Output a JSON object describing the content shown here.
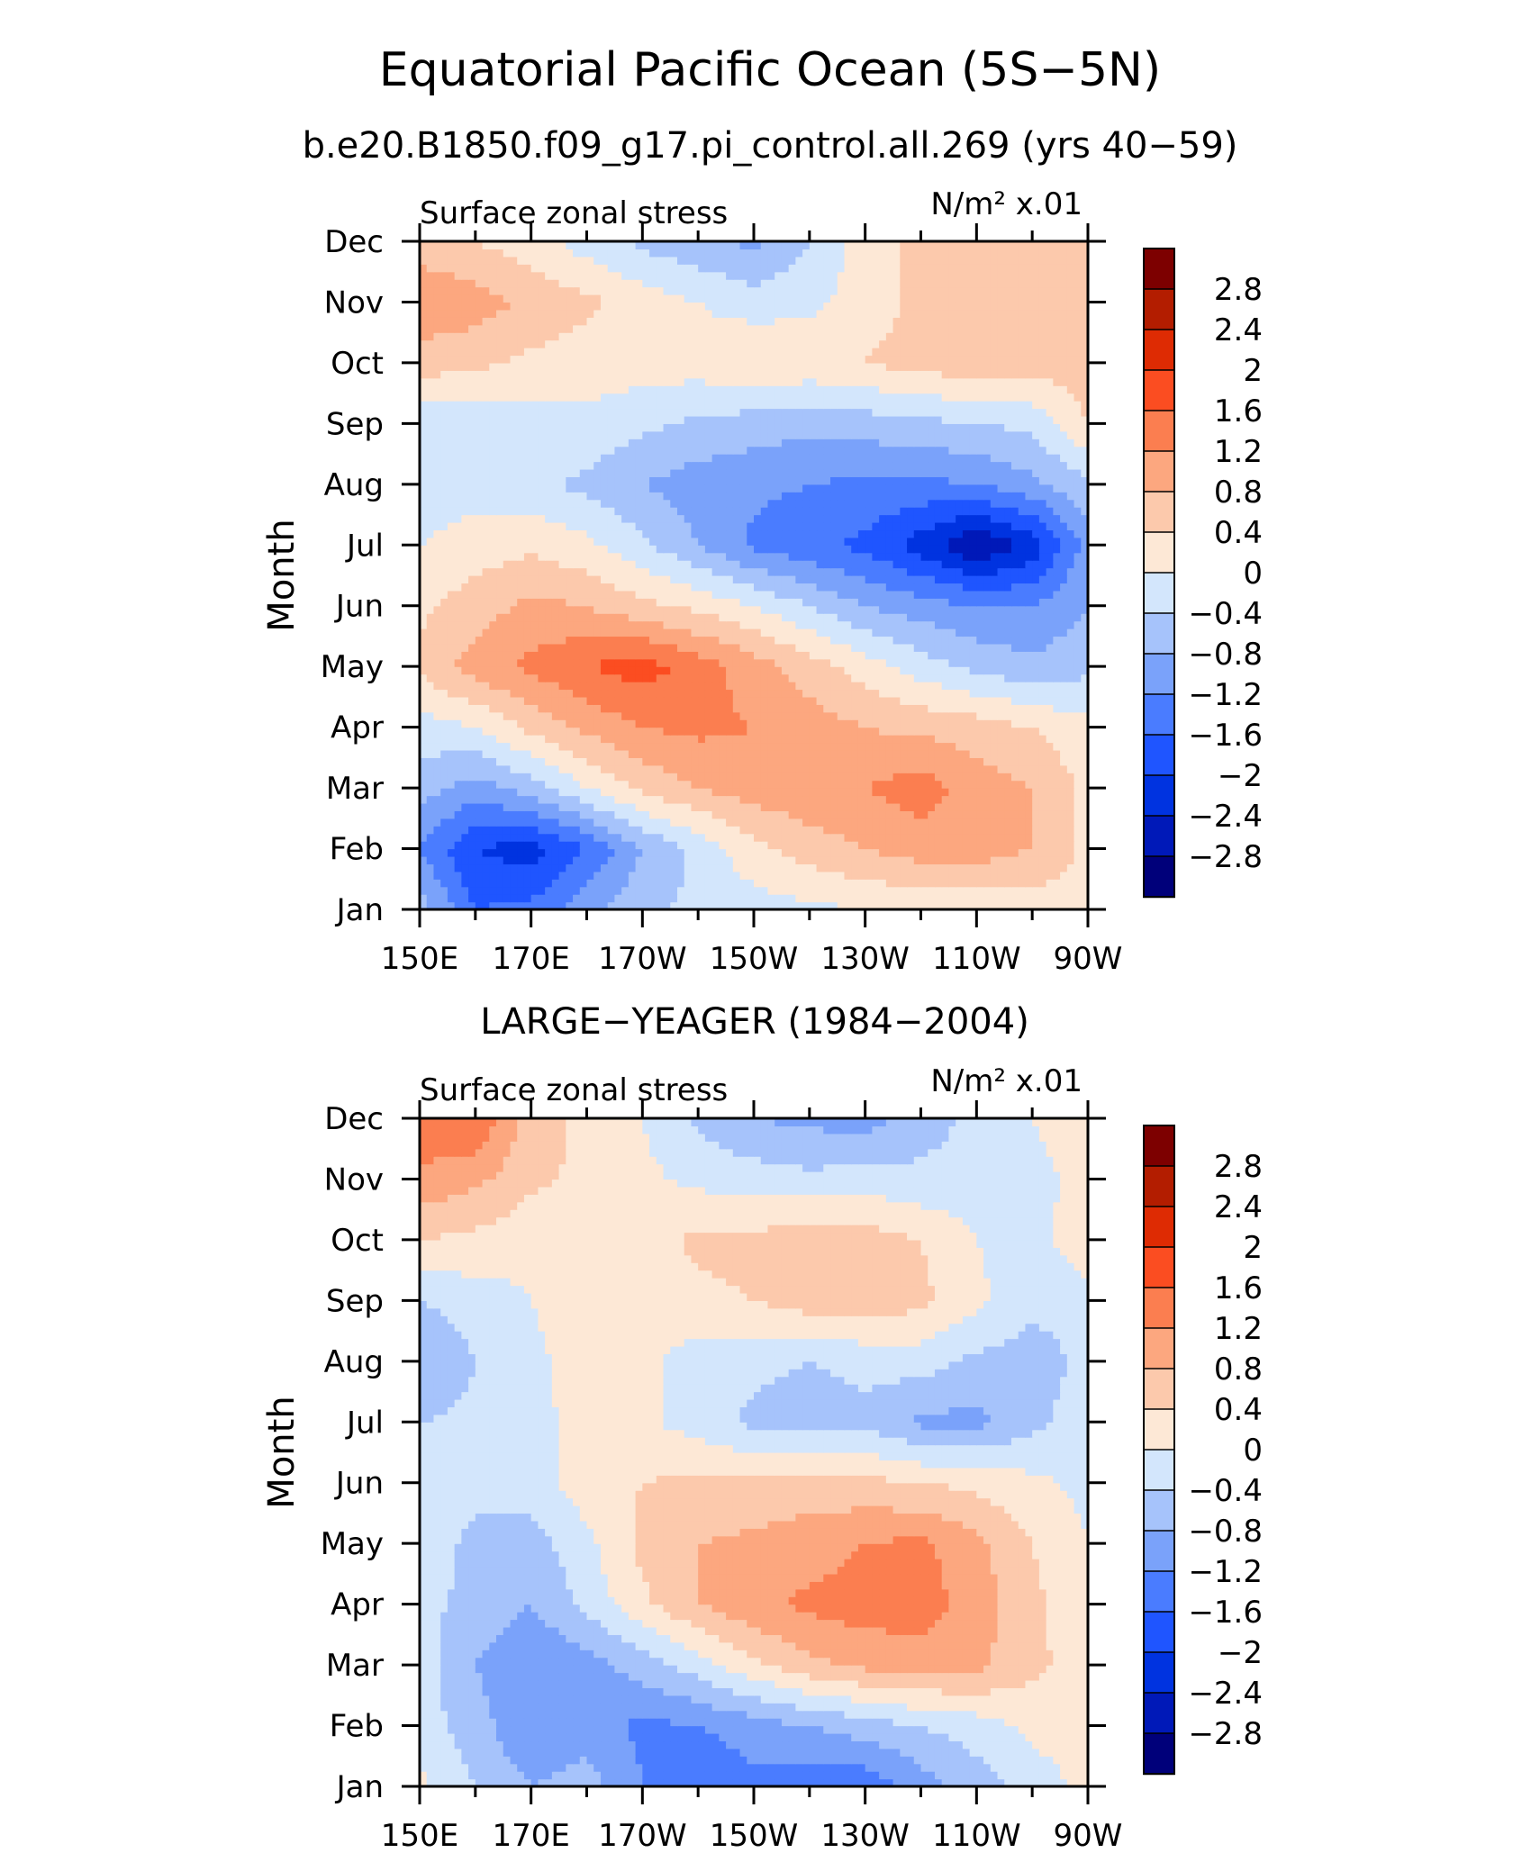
{
  "title": "Equatorial Pacific Ocean (5S−5N)",
  "subtitle": "b.e20.B1850.f09_g17.pi_control.all.269 (yrs 40−59)",
  "panel2_title": "LARGE−YEAGER (1984−2004)",
  "palette": [
    "#00007a",
    "#0019b8",
    "#0033e0",
    "#1f55ff",
    "#4a7cff",
    "#7aa2fa",
    "#a6c3fb",
    "#d3e6fc",
    "#fde8d6",
    "#fcc9ac",
    "#fca77f",
    "#fb7e50",
    "#fb4d21",
    "#de2b03",
    "#b31d00",
    "#7d0000"
  ],
  "chart_data": [
    {
      "type": "heatmap",
      "title": "",
      "left_label": "Surface zonal stress",
      "units_label": "N/m² x.01",
      "ylabel": "Month",
      "xlabel": "",
      "x_ticks": [
        "150E",
        "170E",
        "170W",
        "150W",
        "130W",
        "110W",
        "90W"
      ],
      "y_ticks": [
        "Jan",
        "Feb",
        "Mar",
        "Apr",
        "May",
        "Jun",
        "Jul",
        "Aug",
        "Sep",
        "Oct",
        "Nov",
        "Dec"
      ],
      "xlim_deg_east": [
        150,
        270
      ],
      "contour_levels": [
        -2.8,
        -2.4,
        -2,
        -1.6,
        -1.2,
        -0.8,
        -0.4,
        0,
        0.4,
        0.8,
        1.2,
        1.6,
        2,
        2.4,
        2.8
      ],
      "colorbar_labels": [
        "2.8",
        "2.4",
        "2",
        "1.6",
        "1.2",
        "0.8",
        "0.4",
        "0",
        "−0.4",
        "−0.8",
        "−1.2",
        "−1.6",
        "−2",
        "−2.4",
        "−2.8"
      ],
      "lon_grid": [
        150,
        160,
        170,
        180,
        190,
        200,
        210,
        220,
        230,
        240,
        250,
        260,
        270
      ],
      "values": [
        [
          -0.6,
          -1.6,
          -1.5,
          -0.9,
          -0.5,
          -0.3,
          -0.2,
          -0.1,
          0.0,
          0.1,
          0.1,
          0.2,
          0.2
        ],
        [
          -1.2,
          -2.0,
          -2.2,
          -1.6,
          -0.8,
          -0.3,
          0.3,
          0.6,
          0.8,
          1.0,
          1.0,
          0.8,
          0.3
        ],
        [
          -0.6,
          -1.0,
          -0.6,
          0.0,
          0.5,
          0.8,
          1.0,
          1.1,
          1.2,
          1.4,
          1.0,
          0.8,
          0.3
        ],
        [
          -0.2,
          0.0,
          0.5,
          0.9,
          1.2,
          1.3,
          1.2,
          1.0,
          0.8,
          0.7,
          0.6,
          0.4,
          0.1
        ],
        [
          0.5,
          1.0,
          1.3,
          1.6,
          1.8,
          1.4,
          1.0,
          0.6,
          0.2,
          -0.2,
          -0.5,
          -0.7,
          -0.5
        ],
        [
          0.3,
          0.6,
          0.9,
          0.8,
          0.5,
          0.3,
          0.0,
          -0.4,
          -0.8,
          -1.0,
          -1.2,
          -1.2,
          -0.8
        ],
        [
          0.0,
          0.2,
          0.3,
          0.1,
          -0.3,
          -0.8,
          -1.3,
          -1.5,
          -1.7,
          -2.2,
          -2.8,
          -2.3,
          -1.0
        ],
        [
          -0.2,
          -0.2,
          -0.3,
          -0.5,
          -0.8,
          -1.0,
          -1.1,
          -1.2,
          -1.3,
          -1.3,
          -1.2,
          -0.9,
          -0.5
        ],
        [
          -0.3,
          -0.3,
          -0.2,
          -0.1,
          -0.3,
          -0.5,
          -0.6,
          -0.7,
          -0.6,
          -0.5,
          -0.4,
          -0.3,
          0.4
        ],
        [
          0.6,
          0.5,
          0.3,
          0.2,
          0.2,
          0.2,
          0.4,
          0.3,
          0.4,
          0.6,
          0.6,
          0.6,
          0.6
        ],
        [
          1.1,
          1.0,
          0.7,
          0.5,
          0.2,
          0.0,
          -0.2,
          -0.1,
          0.2,
          0.5,
          0.6,
          0.6,
          0.6
        ],
        [
          0.6,
          0.4,
          0.2,
          -0.2,
          -0.5,
          -0.7,
          -0.9,
          -0.4,
          0.2,
          0.5,
          0.6,
          0.6,
          0.6
        ]
      ]
    },
    {
      "type": "heatmap",
      "title": "LARGE−YEAGER (1984−2004)",
      "left_label": "Surface zonal stress",
      "units_label": "N/m² x.01",
      "ylabel": "Month",
      "xlabel": "",
      "x_ticks": [
        "150E",
        "170E",
        "170W",
        "150W",
        "130W",
        "110W",
        "90W"
      ],
      "y_ticks": [
        "Jan",
        "Feb",
        "Mar",
        "Apr",
        "May",
        "Jun",
        "Jul",
        "Aug",
        "Sep",
        "Oct",
        "Nov",
        "Dec"
      ],
      "xlim_deg_east": [
        150,
        270
      ],
      "contour_levels": [
        -2.8,
        -2.4,
        -2,
        -1.6,
        -1.2,
        -0.8,
        -0.4,
        0,
        0.4,
        0.8,
        1.2,
        1.6,
        2,
        2.4,
        2.8
      ],
      "colorbar_labels": [
        "2.8",
        "2.4",
        "2",
        "1.6",
        "1.2",
        "0.8",
        "0.4",
        "0",
        "−0.4",
        "−0.8",
        "−1.2",
        "−1.6",
        "−2",
        "−2.4",
        "−2.8"
      ],
      "lon_grid": [
        150,
        160,
        170,
        180,
        190,
        200,
        210,
        220,
        230,
        240,
        250,
        260,
        270
      ],
      "values": [
        [
          0.1,
          -0.4,
          -0.8,
          -0.6,
          -1.2,
          -1.6,
          -1.3,
          -1.4,
          -1.5,
          -1.0,
          -0.6,
          -0.2,
          0.1
        ],
        [
          -0.2,
          -0.6,
          -1.2,
          -1.0,
          -1.3,
          -1.2,
          -1.0,
          -0.8,
          -0.6,
          -0.4,
          -0.2,
          0.1,
          0.2
        ],
        [
          -0.2,
          -0.8,
          -1.2,
          -1.0,
          -0.6,
          -0.2,
          0.3,
          0.7,
          0.9,
          1.0,
          0.9,
          0.5,
          0.2
        ],
        [
          -0.3,
          -0.5,
          -0.8,
          -0.3,
          0.3,
          0.8,
          1.1,
          1.3,
          1.4,
          1.4,
          1.0,
          0.5,
          0.1
        ],
        [
          -0.2,
          -0.5,
          -0.6,
          -0.1,
          0.5,
          0.8,
          0.9,
          1.0,
          1.2,
          1.3,
          0.9,
          0.4,
          0.0
        ],
        [
          -0.2,
          -0.3,
          -0.2,
          0.2,
          0.4,
          0.5,
          0.5,
          0.6,
          0.5,
          0.4,
          0.3,
          0.1,
          -0.1
        ],
        [
          -0.4,
          -0.3,
          -0.1,
          0.1,
          0.1,
          -0.2,
          -0.5,
          -0.6,
          -0.5,
          -0.9,
          -0.9,
          -0.5,
          -0.2
        ],
        [
          -0.8,
          -0.4,
          -0.1,
          0.2,
          0.1,
          -0.2,
          -0.3,
          -0.4,
          -0.3,
          -0.2,
          -0.5,
          -0.6,
          -0.3
        ],
        [
          -0.4,
          -0.2,
          0.0,
          0.2,
          0.2,
          0.3,
          0.4,
          0.6,
          0.7,
          0.5,
          0.1,
          -0.3,
          -0.2
        ],
        [
          0.4,
          0.3,
          0.1,
          0.2,
          0.2,
          0.5,
          0.5,
          0.7,
          0.6,
          0.4,
          0.0,
          -0.2,
          0.3
        ],
        [
          1.1,
          0.9,
          0.5,
          0.3,
          0.1,
          -0.1,
          -0.2,
          -0.3,
          -0.2,
          -0.3,
          -0.2,
          -0.1,
          0.1
        ],
        [
          1.5,
          1.6,
          0.6,
          0.3,
          0.0,
          -0.5,
          -0.8,
          -0.9,
          -1.0,
          -0.6,
          -0.3,
          0.0,
          0.2
        ]
      ]
    }
  ]
}
